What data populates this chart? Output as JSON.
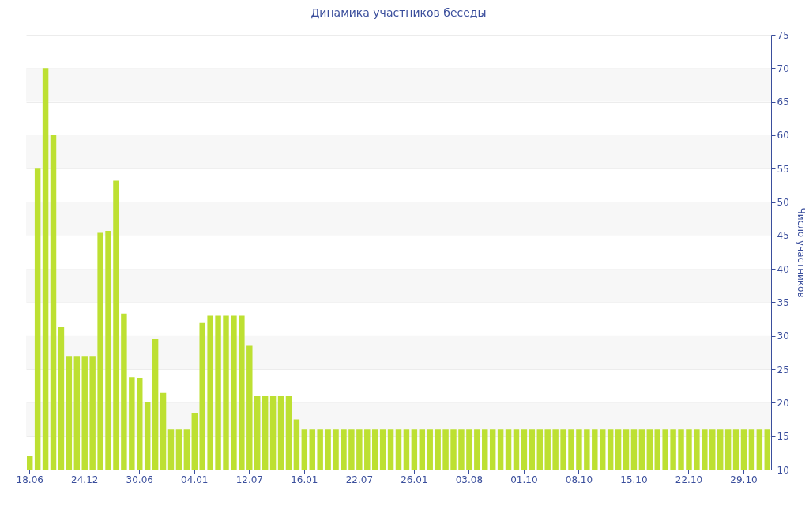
{
  "chart_data": {
    "type": "bar",
    "title": "Динамика участников беседы",
    "ylabel": "Число участников",
    "categories": [
      "18.06",
      null,
      null,
      null,
      null,
      null,
      null,
      "24.12",
      null,
      null,
      null,
      null,
      null,
      null,
      "30.06",
      null,
      null,
      null,
      null,
      null,
      null,
      "04.01",
      null,
      null,
      null,
      null,
      null,
      null,
      "12.07",
      null,
      null,
      null,
      null,
      null,
      null,
      "16.01",
      null,
      null,
      null,
      null,
      null,
      null,
      "22.07",
      null,
      null,
      null,
      null,
      null,
      null,
      "26.01",
      null,
      null,
      null,
      null,
      null,
      null,
      "03.08",
      null,
      null,
      null,
      null,
      null,
      null,
      "01.10",
      null,
      null,
      null,
      null,
      null,
      null,
      "08.10",
      null,
      null,
      null,
      null,
      null,
      null,
      "15.10",
      null,
      null,
      null,
      null,
      null,
      null,
      "22.10",
      null,
      null,
      null,
      null,
      null,
      null,
      "29.10",
      null,
      null,
      null
    ],
    "values": [
      12,
      55,
      70,
      60,
      31.3,
      27,
      27,
      27,
      27,
      45.4,
      45.7,
      53.2,
      33.3,
      23.8,
      23.7,
      20.1,
      29.5,
      21.5,
      16,
      16,
      16,
      18.5,
      32,
      33,
      33,
      33,
      33,
      33,
      28.6,
      21,
      21,
      21,
      21,
      21,
      17.5,
      16,
      16,
      16,
      16,
      16,
      16,
      16,
      16,
      16,
      16,
      16,
      16,
      16,
      16,
      16,
      16,
      16,
      16,
      16,
      16,
      16,
      16,
      16,
      16,
      16,
      16,
      16,
      16,
      16,
      16,
      16,
      16,
      16,
      16,
      16,
      16,
      16,
      16,
      16,
      16,
      16,
      16,
      16,
      16,
      16,
      16,
      16,
      16,
      16,
      16,
      16,
      16,
      16,
      16,
      16,
      16,
      16,
      16,
      16,
      16
    ],
    "color": "#bde032",
    "ylim": [
      10,
      75
    ],
    "yticks": [
      10,
      15,
      20,
      25,
      30,
      35,
      40,
      45,
      50,
      55,
      60,
      65,
      70,
      75
    ],
    "grid": "y"
  }
}
